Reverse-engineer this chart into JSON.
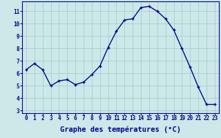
{
  "x": [
    0,
    1,
    2,
    3,
    4,
    5,
    6,
    7,
    8,
    9,
    10,
    11,
    12,
    13,
    14,
    15,
    16,
    17,
    18,
    19,
    20,
    21,
    22,
    23
  ],
  "y": [
    6.3,
    6.8,
    6.3,
    5.0,
    5.4,
    5.5,
    5.1,
    5.3,
    5.9,
    6.6,
    8.1,
    9.4,
    10.3,
    10.4,
    11.3,
    11.4,
    11.0,
    10.4,
    9.5,
    8.0,
    6.5,
    4.9,
    3.5,
    3.5
  ],
  "line_color": "#00008b",
  "marker": "+",
  "marker_color": "#00008b",
  "xlabel": "Graphe des températures (°C)",
  "bg_color": "#cce8e8",
  "grid_color": "#aacccc",
  "axis_color": "#00008b",
  "ylim_min": 2.8,
  "ylim_max": 11.8,
  "yticks": [
    3,
    4,
    5,
    6,
    7,
    8,
    9,
    10,
    11
  ],
  "xlim_min": -0.5,
  "xlim_max": 23.5,
  "xticks": [
    0,
    1,
    2,
    3,
    4,
    5,
    6,
    7,
    8,
    9,
    10,
    11,
    12,
    13,
    14,
    15,
    16,
    17,
    18,
    19,
    20,
    21,
    22,
    23
  ],
  "tick_label_color": "#00008b",
  "tick_fontsize": 5.5,
  "xlabel_fontsize": 7.5,
  "linewidth": 1.0,
  "markersize": 3.5
}
